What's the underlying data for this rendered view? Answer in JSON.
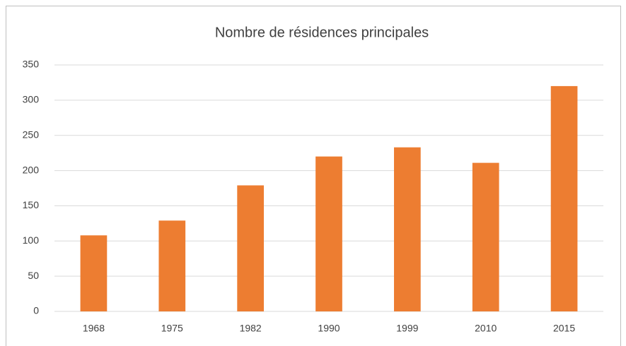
{
  "chart_data": {
    "type": "bar",
    "title": "Nombre de résidences principales",
    "categories": [
      "1968",
      "1975",
      "1982",
      "1990",
      "1999",
      "2010",
      "2015"
    ],
    "values": [
      108,
      129,
      179,
      220,
      233,
      211,
      320
    ],
    "color": "#ed7d31",
    "ylim": [
      0,
      350
    ],
    "yticks": [
      0,
      50,
      100,
      150,
      200,
      250,
      300,
      350
    ],
    "grid": true
  }
}
